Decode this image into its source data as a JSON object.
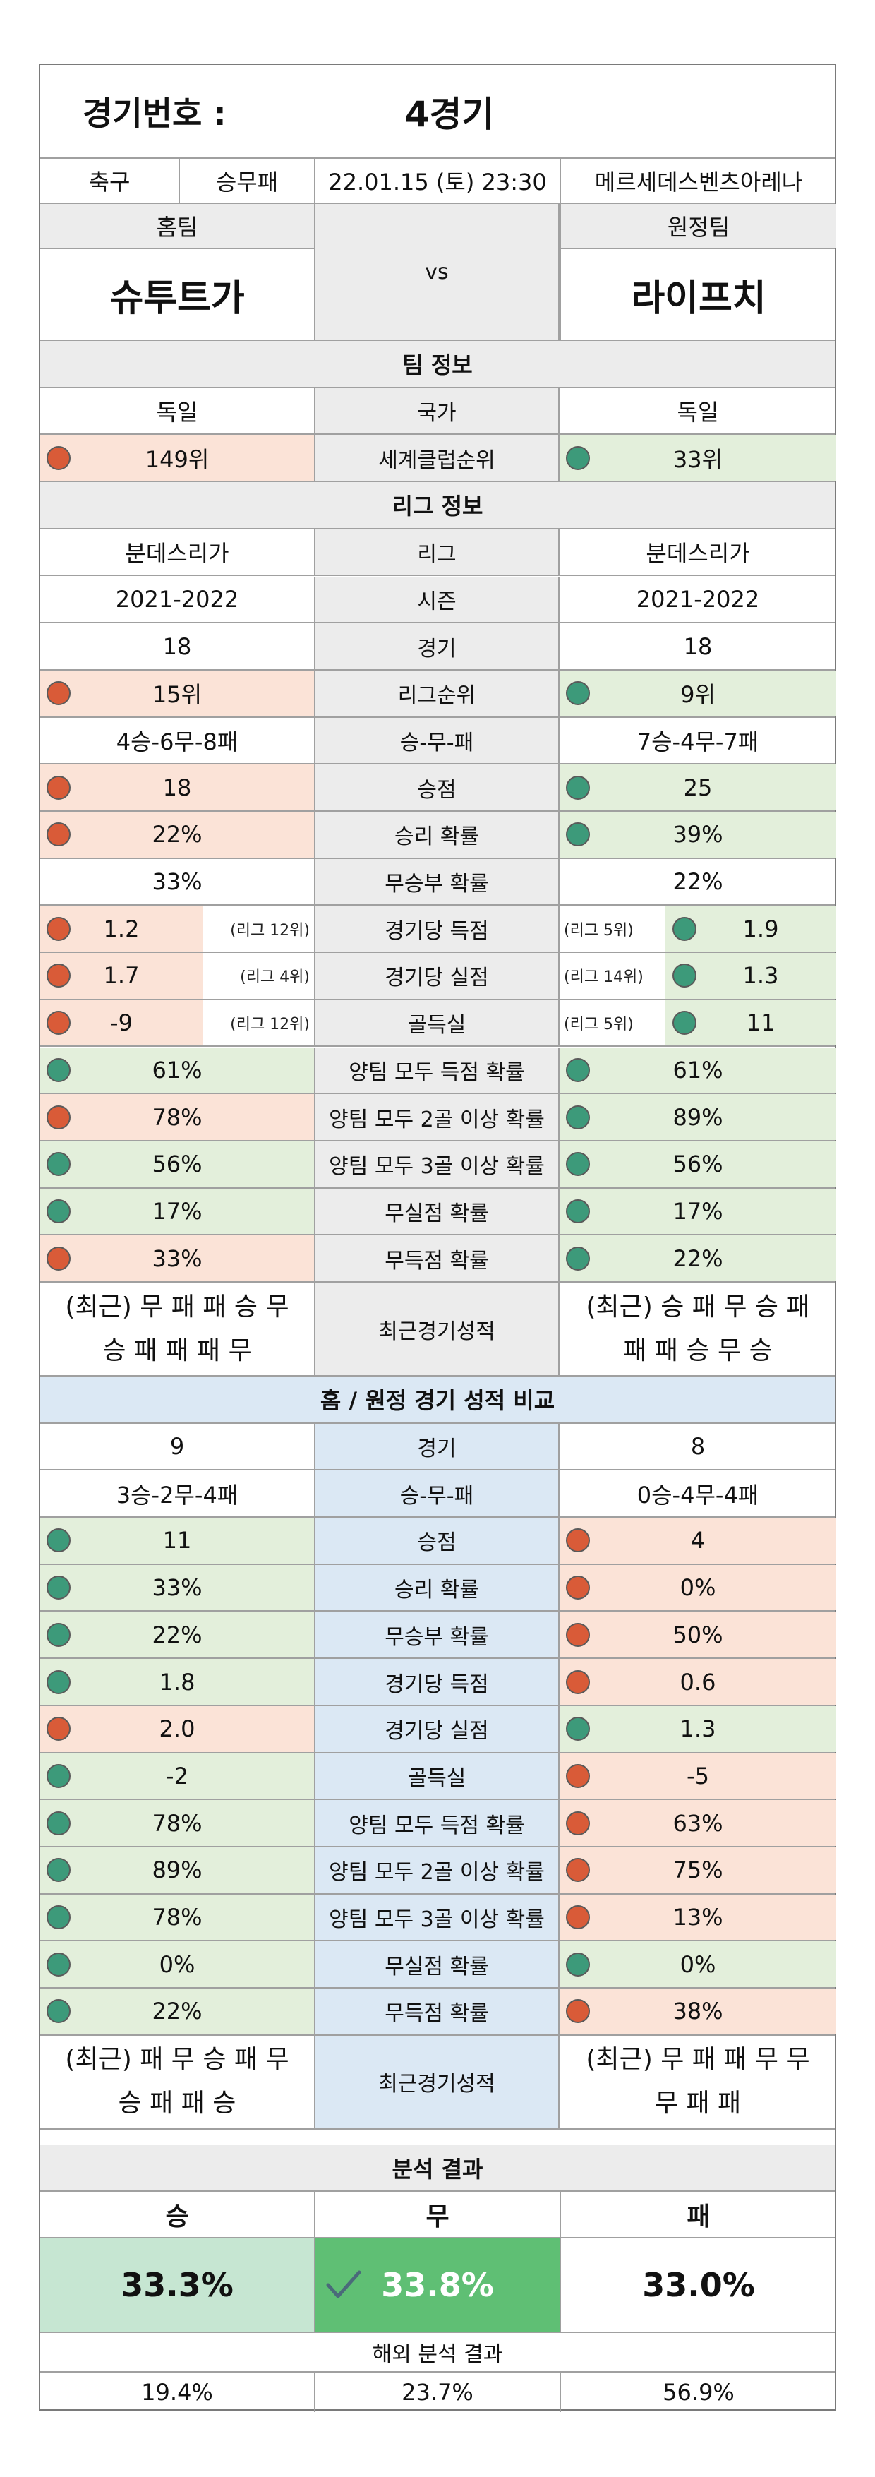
{
  "header": {
    "game_label": "경기번호 :",
    "game_value": "4경기",
    "sport": "축구",
    "bet_type": "승무패",
    "datetime": "22.01.15 (토) 23:30",
    "stadium": "메르세데스벤츠아레나",
    "home_label": "홈팀",
    "away_label": "원정팀",
    "home_team": "슈투트가",
    "away_team": "라이프치",
    "vs": "vs"
  },
  "team_info": {
    "title": "팀 정보",
    "rows": [
      {
        "label": "국가",
        "home": "독일",
        "away": "독일",
        "home_color": "",
        "away_color": ""
      },
      {
        "label": "세계클럽순위",
        "home": "149위",
        "away": "33위",
        "home_color": "red",
        "away_color": "green"
      }
    ]
  },
  "league_info": {
    "title": "리그 정보",
    "rows": [
      {
        "label": "리그",
        "home": "분데스리가",
        "away": "분데스리가",
        "home_color": "",
        "away_color": ""
      },
      {
        "label": "시즌",
        "home": "2021-2022",
        "away": "2021-2022",
        "home_color": "",
        "away_color": ""
      },
      {
        "label": "경기",
        "home": "18",
        "away": "18",
        "home_color": "",
        "away_color": ""
      },
      {
        "label": "리그순위",
        "home": "15위",
        "away": "9위",
        "home_color": "red",
        "away_color": "green"
      },
      {
        "label": "승-무-패",
        "home": "4승-6무-8패",
        "away": "7승-4무-7패",
        "home_color": "",
        "away_color": ""
      },
      {
        "label": "승점",
        "home": "18",
        "away": "25",
        "home_color": "red",
        "away_color": "green"
      },
      {
        "label": "승리 확률",
        "home": "22%",
        "away": "39%",
        "home_color": "red",
        "away_color": "green"
      },
      {
        "label": "무승부 확률",
        "home": "33%",
        "away": "22%",
        "home_color": "",
        "away_color": ""
      },
      {
        "label": "경기당 득점",
        "home": "1.2",
        "away": "1.9",
        "home_color": "red",
        "away_color": "green",
        "home_rank": "(리그 12위)",
        "away_rank": "(리그 5위)"
      },
      {
        "label": "경기당 실점",
        "home": "1.7",
        "away": "1.3",
        "home_color": "red",
        "away_color": "green",
        "home_rank": "(리그 4위)",
        "away_rank": "(리그 14위)"
      },
      {
        "label": "골득실",
        "home": "-9",
        "away": "11",
        "home_color": "red",
        "away_color": "green",
        "home_rank": "(리그 12위)",
        "away_rank": "(리그 5위)"
      },
      {
        "label": "양팀 모두 득점 확률",
        "home": "61%",
        "away": "61%",
        "home_color": "green",
        "away_color": "green"
      },
      {
        "label": "양팀 모두 2골 이상 확률",
        "home": "78%",
        "away": "89%",
        "home_color": "red",
        "away_color": "green"
      },
      {
        "label": "양팀 모두 3골 이상 확률",
        "home": "56%",
        "away": "56%",
        "home_color": "green",
        "away_color": "green"
      },
      {
        "label": "무실점 확률",
        "home": "17%",
        "away": "17%",
        "home_color": "green",
        "away_color": "green"
      },
      {
        "label": "무득점 확률",
        "home": "33%",
        "away": "22%",
        "home_color": "red",
        "away_color": "green"
      }
    ],
    "recent_label": "최근경기성적",
    "recent_home_1": "(최근) 무 패 패 승 무",
    "recent_home_2": "승 패 패 패 무",
    "recent_away_1": "(최근) 승 패 무 승 패",
    "recent_away_2": "패 패 승 무 승"
  },
  "home_away": {
    "title": "홈 / 원정 경기 성적 비교",
    "rows": [
      {
        "label": "경기",
        "home": "9",
        "away": "8",
        "home_color": "",
        "away_color": ""
      },
      {
        "label": "승-무-패",
        "home": "3승-2무-4패",
        "away": "0승-4무-4패",
        "home_color": "",
        "away_color": ""
      },
      {
        "label": "승점",
        "home": "11",
        "away": "4",
        "home_color": "green",
        "away_color": "red"
      },
      {
        "label": "승리 확률",
        "home": "33%",
        "away": "0%",
        "home_color": "green",
        "away_color": "red"
      },
      {
        "label": "무승부 확률",
        "home": "22%",
        "away": "50%",
        "home_color": "green",
        "away_color": "red"
      },
      {
        "label": "경기당 득점",
        "home": "1.8",
        "away": "0.6",
        "home_color": "green",
        "away_color": "red"
      },
      {
        "label": "경기당 실점",
        "home": "2.0",
        "away": "1.3",
        "home_color": "red",
        "away_color": "green"
      },
      {
        "label": "골득실",
        "home": "-2",
        "away": "-5",
        "home_color": "green",
        "away_color": "red"
      },
      {
        "label": "양팀 모두 득점 확률",
        "home": "78%",
        "away": "63%",
        "home_color": "green",
        "away_color": "red"
      },
      {
        "label": "양팀 모두 2골 이상 확률",
        "home": "89%",
        "away": "75%",
        "home_color": "green",
        "away_color": "red"
      },
      {
        "label": "양팀 모두 3골 이상 확률",
        "home": "78%",
        "away": "13%",
        "home_color": "green",
        "away_color": "red"
      },
      {
        "label": "무실점 확률",
        "home": "0%",
        "away": "0%",
        "home_color": "green",
        "away_color": "green"
      },
      {
        "label": "무득점 확률",
        "home": "22%",
        "away": "38%",
        "home_color": "green",
        "away_color": "red"
      }
    ],
    "recent_label": "최근경기성적",
    "recent_home_1": "(최근) 패 무 승 패 무",
    "recent_home_2": "승 패 패 승",
    "recent_away_1": "(최근) 무 패 패 무 무",
    "recent_away_2": "무 패 패"
  },
  "analysis": {
    "title": "분석 결과",
    "win_label": "승",
    "draw_label": "무",
    "loss_label": "패",
    "win_pct": "33.3%",
    "draw_pct": "33.8%",
    "loss_pct": "33.0%",
    "selected": "draw",
    "overseas_title": "해외 분석 결과",
    "overseas_win": "19.4%",
    "overseas_draw": "23.7%",
    "overseas_loss": "56.9%"
  },
  "colors": {
    "green_fill": "#e3efdb",
    "red_fill": "#fbe3d7",
    "green_dot": "#3d9a7a",
    "red_dot": "#d95b38",
    "section_gray": "#ececec",
    "section_blue": "#dbe8f4",
    "win_box": "#c6e6d2",
    "draw_box": "#5fbf74"
  }
}
